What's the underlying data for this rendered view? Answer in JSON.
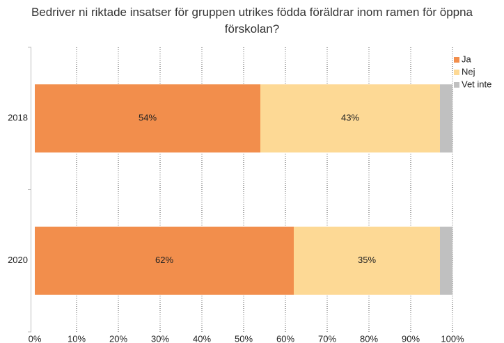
{
  "chart_data": {
    "type": "stacked-bar-horizontal",
    "title": "Bedriver ni riktade insatser för gruppen utrikes födda föräldrar inom ramen för öppna förskolan?",
    "categories": [
      "2018",
      "2020"
    ],
    "series": [
      {
        "name": "Ja",
        "color": "#f28e4c",
        "values": [
          54,
          62
        ],
        "value_labels": [
          "54%",
          "62%"
        ]
      },
      {
        "name": "Nej",
        "color": "#fdd995",
        "values": [
          43,
          35
        ],
        "value_labels": [
          "43%",
          "35%"
        ]
      },
      {
        "name": "Vet inte",
        "color": "#c0c0c0",
        "values": [
          3,
          3
        ]
      }
    ],
    "xlim": [
      0,
      100
    ],
    "xticks": [
      {
        "value": 0,
        "label": "0%"
      },
      {
        "value": 10,
        "label": "10%"
      },
      {
        "value": 20,
        "label": "20%"
      },
      {
        "value": 30,
        "label": "30%"
      },
      {
        "value": 40,
        "label": "40%"
      },
      {
        "value": 50,
        "label": "50%"
      },
      {
        "value": 60,
        "label": "60%"
      },
      {
        "value": 70,
        "label": "70%"
      },
      {
        "value": 80,
        "label": "80%"
      },
      {
        "value": 90,
        "label": "90%"
      },
      {
        "value": 100,
        "label": "100%"
      }
    ],
    "grid": true,
    "legend": "top-right"
  }
}
